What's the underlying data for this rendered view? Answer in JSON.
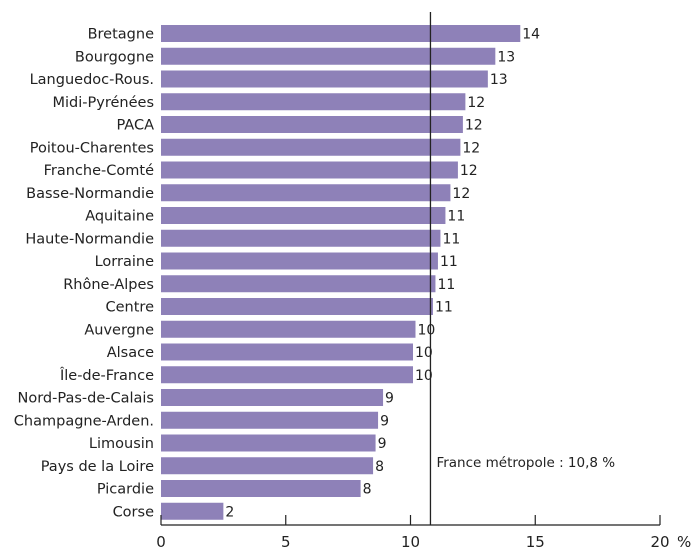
{
  "chart_data": {
    "type": "bar",
    "orientation": "horizontal",
    "title": "",
    "xlabel": "",
    "ylabel": "",
    "unit_label": "%",
    "xlim": [
      0,
      20
    ],
    "x_ticks": [
      0,
      5,
      10,
      15,
      20
    ],
    "grid": false,
    "bar_color": "#8e81b8",
    "categories": [
      "Bretagne",
      "Bourgogne",
      "Languedoc-Rous.",
      "Midi-Pyrénées",
      "PACA",
      "Poitou-Charentes",
      "Franche-Comté",
      "Basse-Normandie",
      "Aquitaine",
      "Haute-Normandie",
      "Lorraine",
      "Rhône-Alpes",
      "Centre",
      "Auvergne",
      "Alsace",
      "Île-de-France",
      "Nord-Pas-de-Calais",
      "Champagne-Arden.",
      "Limousin",
      "Pays de la Loire",
      "Picardie",
      "Corse"
    ],
    "values": [
      14.4,
      13.4,
      13.1,
      12.2,
      12.1,
      12.0,
      11.9,
      11.6,
      11.4,
      11.2,
      11.1,
      11.0,
      10.9,
      10.2,
      10.1,
      10.1,
      8.9,
      8.7,
      8.6,
      8.5,
      8.0,
      2.5
    ],
    "value_labels": [
      "14",
      "13",
      "13",
      "12",
      "12",
      "12",
      "12",
      "12",
      "11",
      "11",
      "11",
      "11",
      "11",
      "10",
      "10",
      "10",
      "9",
      "9",
      "9",
      "8",
      "8",
      "2"
    ],
    "reference_line": {
      "value": 10.8,
      "label": "France métropole : 10,8 %"
    }
  }
}
